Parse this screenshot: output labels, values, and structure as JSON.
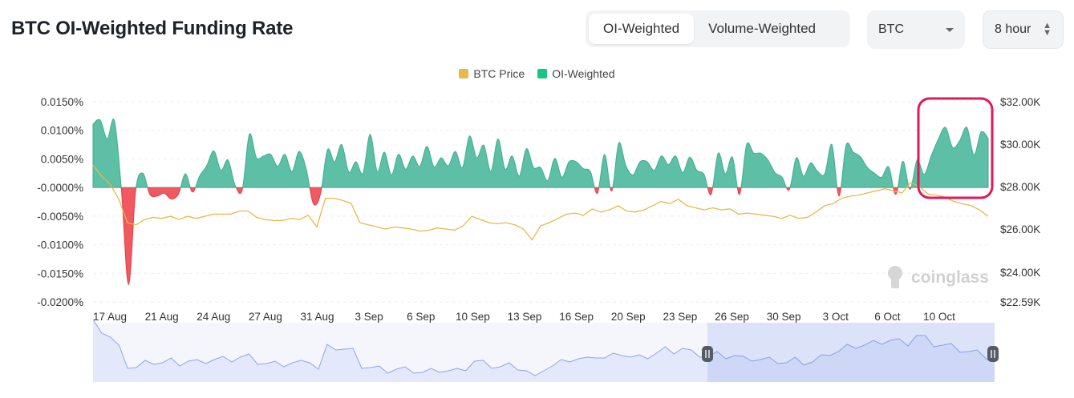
{
  "header": {
    "title": "BTC OI-Weighted Funding Rate"
  },
  "toolbar": {
    "tabs": [
      {
        "label": "OI-Weighted",
        "active": true
      },
      {
        "label": "Volume-Weighted",
        "active": false
      }
    ],
    "coin_select": {
      "value": "BTC"
    },
    "interval_select": {
      "value": "8 hour"
    }
  },
  "brand": {
    "watermark": "coinglass"
  },
  "colors": {
    "positive": "#5cbfa6",
    "negative": "#f0595f",
    "price": "#e8b84a",
    "legend_oi": "#16c784",
    "highlight": "#e0195a",
    "navigator_line": "#8ea5e6",
    "navigator_fill": "#e3e9fb",
    "grid": "#eeeeee"
  },
  "chart_data": {
    "type": "area",
    "legend": [
      {
        "name": "BTC Price",
        "color": "#e8b84a"
      },
      {
        "name": "OI-Weighted",
        "color": "#16c784"
      }
    ],
    "y_left": {
      "ticks": [
        "0.0150%",
        "0.0100%",
        "0.0050%",
        "-0.0000%",
        "-0.0050%",
        "-0.0100%",
        "-0.0150%",
        "-0.0200%"
      ],
      "ylim": [
        -0.02,
        0.015
      ]
    },
    "y_right": {
      "ticks": [
        "$32.00K",
        "$30.00K",
        "$28.00K",
        "$26.00K",
        "$24.00K",
        "$22.59K"
      ]
    },
    "x_labels": [
      "17 Aug",
      "21 Aug",
      "24 Aug",
      "27 Aug",
      "31 Aug",
      "3 Sep",
      "6 Sep",
      "10 Sep",
      "13 Sep",
      "16 Sep",
      "20 Sep",
      "23 Sep",
      "26 Sep",
      "30 Sep",
      "3 Oct",
      "6 Oct",
      "10 Oct"
    ],
    "series": [
      {
        "name": "OI-Weighted",
        "unit": "%",
        "values": [
          0.0111,
          0.0118,
          0.0085,
          0.0117,
          -0.0005,
          -0.017,
          -0.0005,
          0.0025,
          -0.0012,
          -0.0015,
          -0.001,
          -0.002,
          -0.0012,
          0.0024,
          -0.0008,
          0.002,
          0.0038,
          0.0064,
          0.003,
          0.0048,
          0.0004,
          -0.0004,
          0.0093,
          0.0052,
          0.0055,
          0.0058,
          0.0037,
          0.0058,
          0.0028,
          0.0063,
          0.0033,
          -0.0028,
          -0.0012,
          0.0066,
          0.0045,
          0.0075,
          0.0027,
          0.0045,
          0.0025,
          0.0093,
          0.0028,
          0.0062,
          0.0022,
          0.0058,
          0.0032,
          0.0055,
          0.0037,
          0.0072,
          0.0036,
          0.0052,
          0.0038,
          0.0063,
          0.0035,
          0.009,
          0.0052,
          0.0074,
          0.0028,
          0.0085,
          0.0032,
          0.0055,
          0.002,
          0.0068,
          0.0035,
          0.0035,
          0.0012,
          0.0051,
          0.0018,
          0.0045,
          0.0045,
          0.0033,
          0.0028,
          -0.001,
          0.0058,
          -0.0006,
          0.0078,
          0.0038,
          0.0022,
          0.0045,
          0.0045,
          0.003,
          0.0055,
          0.004,
          0.0055,
          0.0026,
          0.0053,
          0.003,
          0.0023,
          -0.0012,
          0.006,
          0.0024,
          0.0053,
          -0.0012,
          0.0075,
          0.006,
          0.006,
          0.0048,
          0.0026,
          0.0018,
          -0.0004,
          0.0052,
          0.002,
          0.0043,
          0.0028,
          0.0024,
          0.0075,
          -0.0015,
          0.0074,
          0.0062,
          0.0054,
          0.0035,
          0.0025,
          0.0018,
          0.0036,
          -0.0012,
          0.0046,
          -0.0003,
          0.0048,
          0.0023,
          0.0056,
          0.0085,
          0.0105,
          0.007,
          0.0082,
          0.0105,
          0.0057,
          0.0097,
          0.0086
        ]
      },
      {
        "name": "BTC Price",
        "unit": "USD",
        "values": [
          29000,
          28500,
          28100,
          27400,
          26300,
          26200,
          26450,
          26550,
          26500,
          26600,
          26450,
          26600,
          26500,
          26600,
          26700,
          26700,
          26700,
          26850,
          26850,
          26550,
          26450,
          26400,
          26400,
          26500,
          26450,
          26650,
          26100,
          27450,
          27450,
          27350,
          27200,
          26300,
          26200,
          26100,
          26000,
          26100,
          26050,
          26000,
          25900,
          25950,
          26050,
          26000,
          25950,
          26150,
          26600,
          26450,
          26300,
          26250,
          26300,
          26200,
          26000,
          25500,
          26150,
          26300,
          26500,
          26700,
          26750,
          26650,
          26950,
          26800,
          26900,
          27100,
          26850,
          26800,
          26900,
          27100,
          27300,
          27200,
          27400,
          27100,
          27000,
          26900,
          27000,
          26900,
          26950,
          26700,
          26750,
          26700,
          26650,
          26600,
          26500,
          26650,
          26500,
          26550,
          26800,
          27100,
          27200,
          27450,
          27550,
          27600,
          27700,
          27800,
          27900,
          27800,
          27700,
          28200,
          28000,
          27650,
          27600,
          27500,
          27300,
          27200,
          27100,
          26900,
          26600
        ]
      }
    ]
  }
}
